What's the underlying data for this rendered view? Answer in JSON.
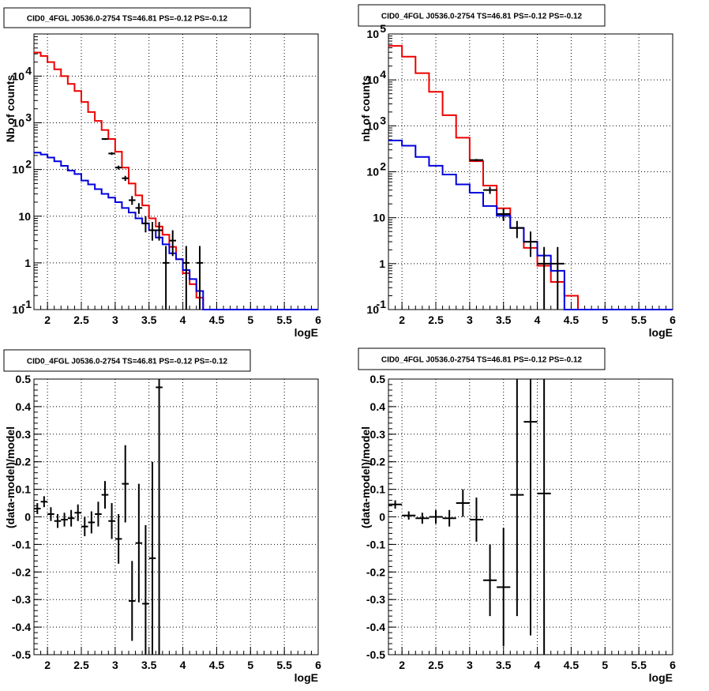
{
  "chart_data": [
    {
      "type": "line",
      "title": "CID0_4FGL J0536.0-2754 TS=46.81 PS=-0.12 PS=-0.12",
      "xlabel": "logE",
      "ylabel": "Nb of counts",
      "xlim": [
        1.8,
        6.0
      ],
      "ylim": [
        0.1,
        80000
      ],
      "yscale": "log",
      "grid": true,
      "x_ticks": [
        "2",
        "2.5",
        "3",
        "3.5",
        "4",
        "4.5",
        "5",
        "5.5",
        "6"
      ],
      "y_ticks": [
        {
          "v": 0.1,
          "label": "10",
          "exp": "-1"
        },
        {
          "v": 1,
          "label": "1"
        },
        {
          "v": 10,
          "label": "10"
        },
        {
          "v": 100,
          "label": "10",
          "exp": "2"
        },
        {
          "v": 1000,
          "label": "10",
          "exp": "3"
        },
        {
          "v": 10000,
          "label": "10",
          "exp": "4"
        }
      ],
      "bin_edges": [
        1.8,
        1.9,
        2.0,
        2.1,
        2.2,
        2.3,
        2.4,
        2.5,
        2.6,
        2.7,
        2.8,
        2.9,
        3.0,
        3.1,
        3.2,
        3.3,
        3.4,
        3.5,
        3.6,
        3.7,
        3.8,
        3.9,
        4.0,
        4.1,
        4.2,
        4.3,
        4.4,
        4.5,
        4.6,
        4.7,
        4.8,
        4.9,
        5.0,
        5.1,
        5.2,
        5.3,
        5.4,
        5.5,
        5.6,
        5.7,
        5.8,
        5.9,
        6.0
      ],
      "series": [
        {
          "color": "#ee0000",
          "kind": "step",
          "values": [
            32000,
            27000,
            20000,
            14000,
            10000,
            6800,
            4800,
            2800,
            1700,
            1100,
            700,
            450,
            240,
            110,
            50,
            28,
            17,
            9,
            6,
            4,
            2.2,
            1.2,
            0.6,
            0.35,
            0.18,
            0.1,
            0.1,
            0.1,
            0.1,
            0.1,
            0.1,
            0.1,
            0.1,
            0.1,
            0.1,
            0.1,
            0.1,
            0.1,
            0.1,
            0.1,
            0.1,
            0.1
          ]
        },
        {
          "color": "#0000dd",
          "kind": "step",
          "values": [
            230,
            210,
            180,
            150,
            120,
            95,
            80,
            58,
            48,
            38,
            30,
            25,
            20,
            15,
            12,
            9,
            7,
            5,
            3.5,
            2.5,
            1.6,
            1.2,
            0.7,
            0.45,
            0.25,
            0.1,
            0.1,
            0.1,
            0.1,
            0.1,
            0.1,
            0.1,
            0.1,
            0.1,
            0.1,
            0.1,
            0.1,
            0.1,
            0.1,
            0.1,
            0.1,
            0.1
          ]
        },
        {
          "color": "#000000",
          "kind": "errorbar",
          "points": [
            {
              "x": 2.85,
              "y": 450,
              "lo": 430,
              "hi": 470
            },
            {
              "x": 2.95,
              "y": 220,
              "lo": 205,
              "hi": 235
            },
            {
              "x": 3.05,
              "y": 110,
              "lo": 100,
              "hi": 121
            },
            {
              "x": 3.15,
              "y": 65,
              "lo": 57,
              "hi": 73
            },
            {
              "x": 3.25,
              "y": 22,
              "lo": 17.5,
              "hi": 27
            },
            {
              "x": 3.35,
              "y": 15,
              "lo": 11.2,
              "hi": 19
            },
            {
              "x": 3.45,
              "y": 7,
              "lo": 4.5,
              "hi": 10
            },
            {
              "x": 3.55,
              "y": 5,
              "lo": 3,
              "hi": 7.5
            },
            {
              "x": 3.65,
              "y": 5,
              "lo": 3,
              "hi": 7.5
            },
            {
              "x": 3.75,
              "y": 1,
              "lo": 0.1,
              "hi": 2.3
            },
            {
              "x": 3.85,
              "y": 3,
              "lo": 1.4,
              "hi": 5
            },
            {
              "x": 4.05,
              "y": 1,
              "lo": 0.1,
              "hi": 2.3
            },
            {
              "x": 4.25,
              "y": 1,
              "lo": 0.1,
              "hi": 2.3
            }
          ]
        }
      ]
    },
    {
      "type": "line",
      "title": "CID0_4FGL J0536.0-2754 TS=46.81 PS=-0.12 PS=-0.12",
      "xlabel": "logE",
      "ylabel": "nb of counts",
      "xlim": [
        1.8,
        6.0
      ],
      "ylim": [
        0.1,
        100000
      ],
      "yscale": "log",
      "grid": true,
      "x_ticks": [
        "2",
        "2.5",
        "3",
        "3.5",
        "4",
        "4.5",
        "5",
        "5.5",
        "6"
      ],
      "y_ticks": [
        {
          "v": 0.1,
          "label": "10",
          "exp": "-1"
        },
        {
          "v": 1,
          "label": "1"
        },
        {
          "v": 10,
          "label": "10"
        },
        {
          "v": 100,
          "label": "10",
          "exp": "2"
        },
        {
          "v": 1000,
          "label": "10",
          "exp": "3"
        },
        {
          "v": 10000,
          "label": "10",
          "exp": "4"
        },
        {
          "v": 100000,
          "label": "10",
          "exp": "5"
        }
      ],
      "bin_edges": [
        1.8,
        2.0,
        2.2,
        2.4,
        2.6,
        2.8,
        3.0,
        3.2,
        3.4,
        3.6,
        3.8,
        4.0,
        4.2,
        4.4,
        4.6,
        4.8,
        5.0,
        5.2,
        5.4,
        5.6,
        5.8,
        6.0
      ],
      "series": [
        {
          "color": "#ee0000",
          "kind": "step",
          "values": [
            55000,
            32000,
            14000,
            5500,
            1700,
            550,
            170,
            50,
            16,
            6,
            2.2,
            0.9,
            0.4,
            0.2,
            0.1,
            0.1,
            0.1,
            0.1,
            0.1,
            0.1,
            0.1
          ]
        },
        {
          "color": "#0000dd",
          "kind": "step",
          "values": [
            480,
            370,
            210,
            135,
            87,
            53,
            35,
            18,
            11,
            6,
            3,
            1.5,
            0.7,
            0.1,
            0.1,
            0.1,
            0.1,
            0.1,
            0.1,
            0.1,
            0.1
          ]
        },
        {
          "color": "#000000",
          "kind": "errorbar",
          "points": [
            {
              "x": 3.1,
              "y": 180,
              "lo": 170,
              "hi": 190
            },
            {
              "x": 3.3,
              "y": 40,
              "lo": 33,
              "hi": 47
            },
            {
              "x": 3.5,
              "y": 12,
              "lo": 8.5,
              "hi": 16
            },
            {
              "x": 3.7,
              "y": 6,
              "lo": 3.6,
              "hi": 8.5
            },
            {
              "x": 3.9,
              "y": 3,
              "lo": 1.4,
              "hi": 5
            },
            {
              "x": 4.1,
              "y": 1,
              "lo": 0.1,
              "hi": 2.3
            },
            {
              "x": 4.3,
              "y": 1,
              "lo": 0.1,
              "hi": 2.3
            }
          ]
        }
      ]
    },
    {
      "type": "scatter",
      "title": "CID0_4FGL J0536.0-2754 TS=46.81 PS=-0.12 PS=-0.12",
      "xlabel": "logE",
      "ylabel": "(data-model)/model",
      "xlim": [
        1.8,
        6.0
      ],
      "ylim": [
        -0.5,
        0.5
      ],
      "yscale": "linear",
      "grid": true,
      "x_ticks": [
        "2",
        "2.5",
        "3",
        "3.5",
        "4",
        "4.5",
        "5",
        "5.5",
        "6"
      ],
      "y_ticks": [
        {
          "v": -0.5,
          "label": "-0.5"
        },
        {
          "v": -0.4,
          "label": "-0.4"
        },
        {
          "v": -0.3,
          "label": "-0.3"
        },
        {
          "v": -0.2,
          "label": "-0.2"
        },
        {
          "v": -0.1,
          "label": "-0.1"
        },
        {
          "v": 0,
          "label": "0"
        },
        {
          "v": 0.1,
          "label": "0.1"
        },
        {
          "v": 0.2,
          "label": "0.2"
        },
        {
          "v": 0.3,
          "label": "0.3"
        },
        {
          "v": 0.4,
          "label": "0.4"
        },
        {
          "v": 0.5,
          "label": "0.5"
        }
      ],
      "series": [
        {
          "color": "#000000",
          "kind": "errorbar",
          "half_width": 0.05,
          "points": [
            {
              "x": 1.85,
              "y": 0.03,
              "lo": 0.01,
              "hi": 0.05
            },
            {
              "x": 1.95,
              "y": 0.055,
              "lo": 0.035,
              "hi": 0.075
            },
            {
              "x": 2.05,
              "y": 0.01,
              "lo": -0.015,
              "hi": 0.035
            },
            {
              "x": 2.15,
              "y": -0.015,
              "lo": -0.04,
              "hi": 0.01
            },
            {
              "x": 2.25,
              "y": -0.01,
              "lo": -0.035,
              "hi": 0.015
            },
            {
              "x": 2.35,
              "y": -0.005,
              "lo": -0.035,
              "hi": 0.025
            },
            {
              "x": 2.45,
              "y": 0.015,
              "lo": -0.015,
              "hi": 0.045
            },
            {
              "x": 2.55,
              "y": -0.035,
              "lo": -0.07,
              "hi": 0.0
            },
            {
              "x": 2.65,
              "y": -0.02,
              "lo": -0.06,
              "hi": 0.02
            },
            {
              "x": 2.75,
              "y": 0.01,
              "lo": -0.035,
              "hi": 0.055
            },
            {
              "x": 2.85,
              "y": 0.08,
              "lo": 0.03,
              "hi": 0.13
            },
            {
              "x": 2.95,
              "y": -0.015,
              "lo": -0.08,
              "hi": 0.05
            },
            {
              "x": 3.05,
              "y": -0.08,
              "lo": -0.17,
              "hi": 0.01
            },
            {
              "x": 3.15,
              "y": 0.12,
              "lo": -0.02,
              "hi": 0.26
            },
            {
              "x": 3.25,
              "y": -0.305,
              "lo": -0.45,
              "hi": -0.16
            },
            {
              "x": 3.35,
              "y": -0.095,
              "lo": -0.31,
              "hi": 0.12
            },
            {
              "x": 3.45,
              "y": -0.315,
              "lo": -0.5,
              "hi": -0.03
            },
            {
              "x": 3.55,
              "y": -0.15,
              "lo": -0.5,
              "hi": 0.2
            },
            {
              "x": 3.65,
              "y": 0.47,
              "lo": -0.5,
              "hi": 0.5
            }
          ]
        }
      ]
    },
    {
      "type": "scatter",
      "title": "CID0_4FGL J0536.0-2754 TS=46.81 PS=-0.12 PS=-0.12",
      "xlabel": "logE",
      "ylabel": "(data-model)/model",
      "xlim": [
        1.8,
        6.0
      ],
      "ylim": [
        -0.5,
        0.5
      ],
      "yscale": "linear",
      "grid": true,
      "x_ticks": [
        "2",
        "2.5",
        "3",
        "3.5",
        "4",
        "4.5",
        "5",
        "5.5",
        "6"
      ],
      "y_ticks": [
        {
          "v": -0.5,
          "label": "-0.5"
        },
        {
          "v": -0.4,
          "label": "-0.4"
        },
        {
          "v": -0.3,
          "label": "-0.3"
        },
        {
          "v": -0.2,
          "label": "-0.2"
        },
        {
          "v": -0.1,
          "label": "-0.1"
        },
        {
          "v": 0,
          "label": "0"
        },
        {
          "v": 0.1,
          "label": "0.1"
        },
        {
          "v": 0.2,
          "label": "0.2"
        },
        {
          "v": 0.3,
          "label": "0.3"
        },
        {
          "v": 0.4,
          "label": "0.4"
        },
        {
          "v": 0.5,
          "label": "0.5"
        }
      ],
      "series": [
        {
          "color": "#000000",
          "kind": "errorbar",
          "half_width": 0.1,
          "points": [
            {
              "x": 1.9,
              "y": 0.045,
              "lo": 0.03,
              "hi": 0.06
            },
            {
              "x": 2.1,
              "y": 0.005,
              "lo": -0.01,
              "hi": 0.02
            },
            {
              "x": 2.3,
              "y": -0.005,
              "lo": -0.025,
              "hi": 0.015
            },
            {
              "x": 2.5,
              "y": 0.0,
              "lo": -0.025,
              "hi": 0.025
            },
            {
              "x": 2.7,
              "y": -0.005,
              "lo": -0.035,
              "hi": 0.025
            },
            {
              "x": 2.9,
              "y": 0.05,
              "lo": 0.0,
              "hi": 0.1
            },
            {
              "x": 3.1,
              "y": -0.01,
              "lo": -0.09,
              "hi": 0.07
            },
            {
              "x": 3.3,
              "y": -0.23,
              "lo": -0.36,
              "hi": -0.1
            },
            {
              "x": 3.5,
              "y": -0.255,
              "lo": -0.47,
              "hi": -0.04
            },
            {
              "x": 3.7,
              "y": 0.08,
              "lo": -0.36,
              "hi": 0.5
            },
            {
              "x": 3.9,
              "y": 0.345,
              "lo": -0.43,
              "hi": 0.5
            },
            {
              "x": 4.1,
              "y": 0.085,
              "lo": -0.5,
              "hi": 0.5
            }
          ]
        }
      ]
    }
  ]
}
